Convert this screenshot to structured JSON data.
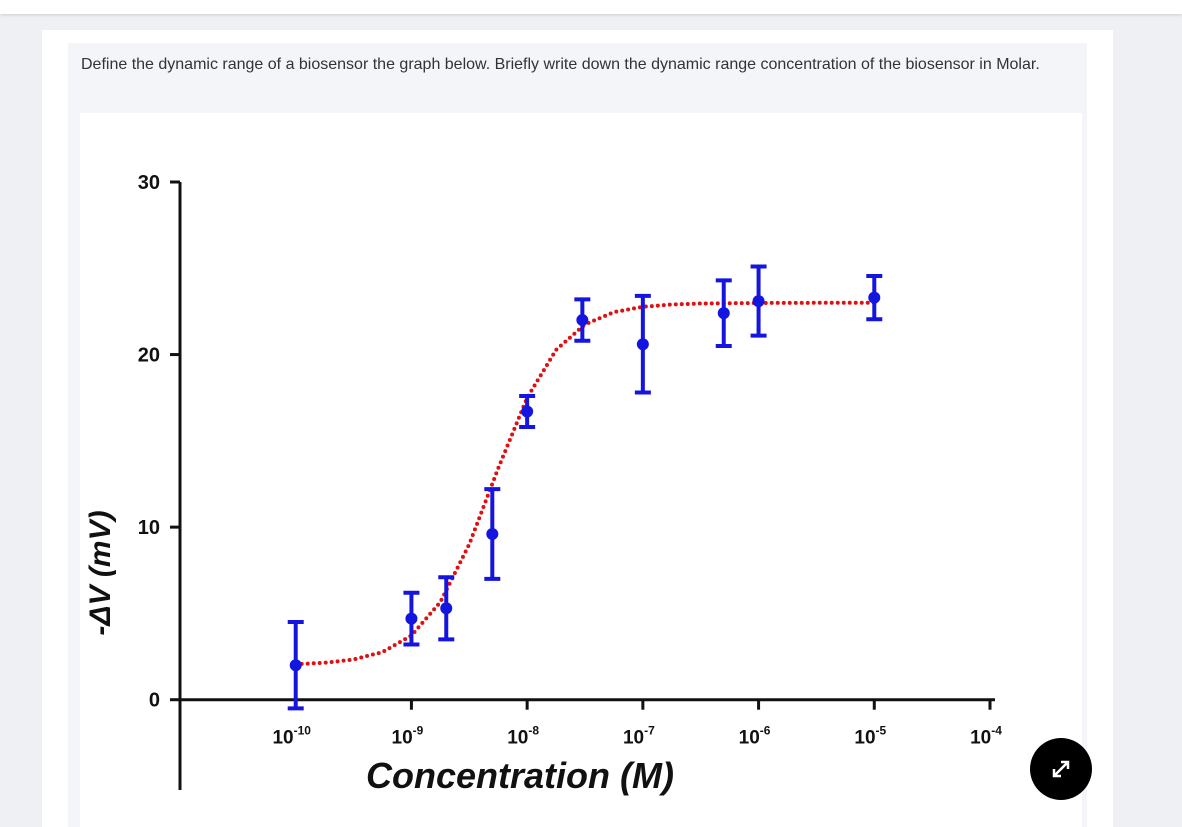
{
  "question": "Define the dynamic range of a biosensor the graph below. Briefly write down the dynamic range concentration of the biosensor in Molar.",
  "chart_data": {
    "type": "scatter",
    "xlabel": "Concentration (M)",
    "ylabel": "-ΔV (mV)",
    "xscale": "log",
    "xlim": [
      1e-11,
      0.0001
    ],
    "ylim": [
      -5,
      30
    ],
    "xticks": [
      {
        "value": 1e-10,
        "label": "10",
        "sup": "-10"
      },
      {
        "value": 1e-09,
        "label": "10",
        "sup": "-9"
      },
      {
        "value": 1e-08,
        "label": "10",
        "sup": "-8"
      },
      {
        "value": 1e-07,
        "label": "10",
        "sup": "-7"
      },
      {
        "value": 1e-06,
        "label": "10",
        "sup": "-6"
      },
      {
        "value": 1e-05,
        "label": "10",
        "sup": "-5"
      },
      {
        "value": 0.0001,
        "label": "10",
        "sup": "-4"
      }
    ],
    "yticks": [
      0,
      10,
      20,
      30
    ],
    "points": {
      "color": "#1515e0",
      "x": [
        1e-10,
        1e-09,
        2e-09,
        5e-09,
        1e-08,
        3e-08,
        1e-07,
        5e-07,
        1e-06,
        1e-05
      ],
      "values": [
        2.0,
        4.7,
        5.3,
        9.6,
        16.7,
        22.0,
        20.6,
        22.4,
        23.1,
        23.3
      ],
      "errors": [
        2.5,
        1.5,
        1.8,
        2.6,
        0.9,
        1.2,
        2.8,
        1.9,
        2.0,
        1.25
      ]
    },
    "fit": {
      "color": "#e01010",
      "x": [
        1e-10,
        1.778e-10,
        3.162e-10,
        5.623e-10,
        1e-09,
        1.778e-09,
        3.162e-09,
        5.623e-09,
        1e-08,
        1.778e-08,
        3.162e-08,
        5.623e-08,
        1e-07,
        1.778e-07,
        3.162e-07,
        1e-06,
        3.162e-06,
        1e-05
      ],
      "values": [
        2.06,
        2.14,
        2.33,
        2.76,
        3.72,
        5.66,
        9.01,
        13.41,
        17.5,
        20.27,
        21.75,
        22.46,
        22.77,
        22.9,
        22.96,
        22.99,
        23.0,
        23.0
      ]
    }
  }
}
